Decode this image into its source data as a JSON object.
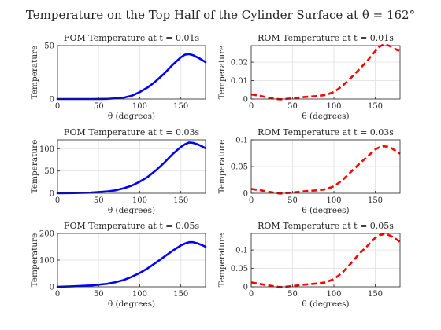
{
  "figure": {
    "title": "Temperature on the Top Half of the Cylinder Surface at θ = 162°"
  },
  "colors": {
    "fom_line": "#0000ff",
    "rom_line": "#ff0000",
    "axis": "#262626",
    "grid": "#e6e6e6"
  },
  "chart_data": [
    {
      "type": "line",
      "title": "FOM Temperature at t = 0.01s",
      "xlabel": "θ (degrees)",
      "ylabel": "Temperature",
      "xlim": [
        0,
        180
      ],
      "ylim": [
        0,
        50
      ],
      "xticks": [
        0,
        50,
        100,
        150
      ],
      "yticks": [
        0,
        50
      ],
      "ytick_labels": [
        "0",
        "50"
      ],
      "grid": true,
      "series": [
        {
          "line_style": "solid",
          "x": [
            0,
            20,
            40,
            60,
            80,
            90,
            100,
            110,
            120,
            130,
            140,
            150,
            155,
            160,
            165,
            170,
            175,
            180
          ],
          "y": [
            0,
            0,
            0,
            0.1,
            1.2,
            3,
            6.5,
            11,
            17,
            24,
            32,
            39,
            41.5,
            42,
            41,
            39,
            37,
            34.5
          ]
        }
      ]
    },
    {
      "type": "line",
      "title": "ROM Temperature at t = 0.01s",
      "xlabel": "θ (degrees)",
      "ylabel": "Temperature",
      "xlim": [
        0,
        180
      ],
      "ylim": [
        0,
        0.029
      ],
      "xticks": [
        0,
        50,
        100,
        150
      ],
      "yticks": [
        0,
        0.01,
        0.02
      ],
      "ytick_labels": [
        "0",
        "0.01",
        "0.02"
      ],
      "grid": true,
      "series": [
        {
          "line_style": "dashed",
          "x": [
            0,
            10,
            20,
            30,
            35,
            40,
            50,
            60,
            70,
            80,
            90,
            100,
            110,
            120,
            130,
            140,
            150,
            155,
            160,
            165,
            170,
            175,
            180
          ],
          "y": [
            0.0025,
            0.0018,
            0.0008,
            0.0001,
            -0.0002,
            0.0,
            0.0004,
            0.0009,
            0.0013,
            0.0016,
            0.0022,
            0.0038,
            0.007,
            0.0112,
            0.0158,
            0.0205,
            0.026,
            0.0285,
            0.0295,
            0.0292,
            0.0283,
            0.027,
            0.0258
          ]
        }
      ]
    },
    {
      "type": "line",
      "title": "FOM Temperature at t = 0.03s",
      "xlabel": "θ (degrees)",
      "ylabel": "Temperature",
      "xlim": [
        0,
        180
      ],
      "ylim": [
        0,
        120
      ],
      "xticks": [
        0,
        50,
        100,
        150
      ],
      "yticks": [
        0,
        50,
        100
      ],
      "ytick_labels": [
        "0",
        "50",
        "100"
      ],
      "grid": true,
      "series": [
        {
          "line_style": "solid",
          "x": [
            0,
            20,
            40,
            60,
            70,
            80,
            90,
            100,
            110,
            120,
            130,
            140,
            150,
            155,
            160,
            165,
            170,
            175,
            180
          ],
          "y": [
            0,
            0.5,
            1.5,
            4,
            6.5,
            11,
            17,
            26,
            37,
            52,
            69,
            88,
            104,
            110,
            114,
            113,
            110,
            106,
            101
          ]
        }
      ]
    },
    {
      "type": "line",
      "title": "ROM Temperature at t = 0.03s",
      "xlabel": "θ (degrees)",
      "ylabel": "Temperature",
      "xlim": [
        0,
        180
      ],
      "ylim": [
        0,
        0.1
      ],
      "xticks": [
        0,
        50,
        100,
        150
      ],
      "yticks": [
        0,
        0.05,
        0.1
      ],
      "ytick_labels": [
        "0",
        "0.05",
        "0.1"
      ],
      "grid": true,
      "series": [
        {
          "line_style": "dashed",
          "x": [
            0,
            10,
            20,
            30,
            35,
            40,
            50,
            60,
            70,
            80,
            90,
            100,
            110,
            120,
            130,
            140,
            150,
            155,
            160,
            165,
            170,
            175,
            180
          ],
          "y": [
            0.008,
            0.006,
            0.003,
            0.0005,
            -0.0005,
            0.0,
            0.0015,
            0.003,
            0.0045,
            0.0055,
            0.0075,
            0.013,
            0.024,
            0.039,
            0.054,
            0.068,
            0.082,
            0.086,
            0.088,
            0.087,
            0.084,
            0.079,
            0.074
          ]
        }
      ]
    },
    {
      "type": "line",
      "title": "FOM Temperature at t = 0.05s",
      "xlabel": "θ (degrees)",
      "ylabel": "Temperature",
      "xlim": [
        0,
        180
      ],
      "ylim": [
        0,
        200
      ],
      "xticks": [
        0,
        50,
        100,
        150
      ],
      "yticks": [
        0,
        100,
        200
      ],
      "ytick_labels": [
        "0",
        "100",
        "200"
      ],
      "grid": true,
      "series": [
        {
          "line_style": "solid",
          "x": [
            0,
            20,
            40,
            60,
            70,
            80,
            90,
            100,
            110,
            120,
            130,
            140,
            150,
            155,
            160,
            165,
            170,
            175,
            180
          ],
          "y": [
            0,
            2,
            5,
            11,
            17,
            25,
            37,
            52,
            70,
            91,
            113,
            135,
            155,
            162,
            167,
            167,
            163,
            157,
            150
          ]
        }
      ]
    },
    {
      "type": "line",
      "title": "ROM Temperature at t = 0.05s",
      "xlabel": "θ (degrees)",
      "ylabel": "Temperature",
      "xlim": [
        0,
        180
      ],
      "ylim": [
        0,
        0.145
      ],
      "xticks": [
        0,
        50,
        100,
        150
      ],
      "yticks": [
        0,
        0.05,
        0.1
      ],
      "ytick_labels": [
        "0",
        "0.05",
        "0.1"
      ],
      "grid": true,
      "series": [
        {
          "line_style": "dashed",
          "x": [
            0,
            10,
            20,
            30,
            35,
            40,
            50,
            60,
            70,
            80,
            90,
            100,
            110,
            120,
            130,
            140,
            150,
            155,
            160,
            165,
            170,
            175,
            180
          ],
          "y": [
            0.012,
            0.008,
            0.004,
            0.001,
            -0.001,
            0.0,
            0.002,
            0.005,
            0.007,
            0.009,
            0.012,
            0.021,
            0.038,
            0.062,
            0.088,
            0.11,
            0.133,
            0.14,
            0.143,
            0.142,
            0.137,
            0.13,
            0.122
          ]
        }
      ]
    }
  ]
}
